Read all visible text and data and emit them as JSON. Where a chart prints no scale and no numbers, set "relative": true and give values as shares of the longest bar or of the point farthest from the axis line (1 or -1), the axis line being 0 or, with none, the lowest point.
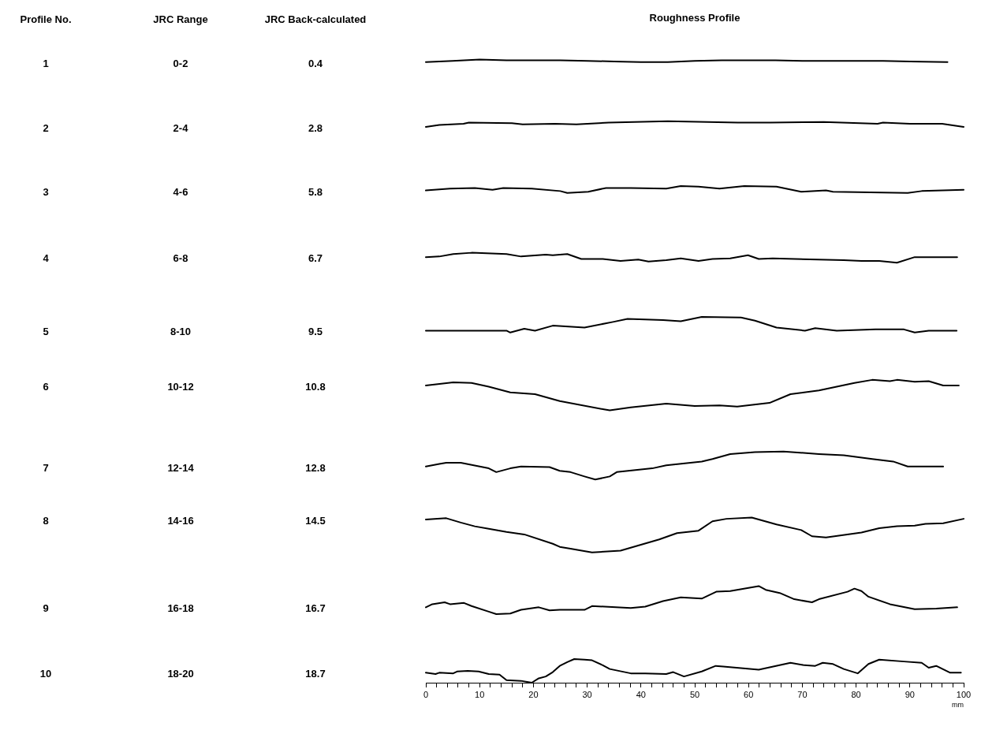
{
  "chart_data": [
    {
      "type": "other",
      "categories": [
        "Profile No.",
        "JRC Range",
        "JRC Back-calculated"
      ],
      "annotations": [
        "1",
        "0-2",
        "0.4",
        "2",
        "2-4",
        "2.8",
        "3",
        "4-6",
        "5.8",
        "4",
        "6-8",
        "6.7",
        "5",
        "8-10",
        "9.5",
        "6",
        "10-12",
        "10.8",
        "7",
        "12-14",
        "12.8",
        "8",
        "14-16",
        "14.5",
        "9",
        "16-18",
        "16.7",
        "10",
        "18-20",
        "18.7"
      ]
    },
    {
      "type": "line",
      "title": "Roughness Profile",
      "xlabel": "mm",
      "relative": true,
      "tick_labels": "x",
      "grid": false,
      "legend": false,
      "marker": "none",
      "line_style": "solid",
      "xlim": [
        0,
        100
      ],
      "xticks": [
        0,
        {
          "value": 2,
          "label": null
        },
        {
          "value": 4,
          "label": null
        },
        {
          "value": 6,
          "label": null
        },
        {
          "value": 8,
          "label": null
        },
        10,
        {
          "value": 12,
          "label": null
        },
        {
          "value": 14,
          "label": null
        },
        {
          "value": 16,
          "label": null
        },
        {
          "value": 18,
          "label": null
        },
        20,
        {
          "value": 22,
          "label": null
        },
        {
          "value": 24,
          "label": null
        },
        {
          "value": 26,
          "label": null
        },
        {
          "value": 28,
          "label": null
        },
        30,
        {
          "value": 32,
          "label": null
        },
        {
          "value": 34,
          "label": null
        },
        {
          "value": 36,
          "label": null
        },
        {
          "value": 38,
          "label": null
        },
        40,
        {
          "value": 42,
          "label": null
        },
        {
          "value": 44,
          "label": null
        },
        {
          "value": 46,
          "label": null
        },
        {
          "value": 48,
          "label": null
        },
        50,
        {
          "value": 52,
          "label": null
        },
        {
          "value": 54,
          "label": null
        },
        {
          "value": 56,
          "label": null
        },
        {
          "value": 58,
          "label": null
        },
        60,
        {
          "value": 62,
          "label": null
        },
        {
          "value": 64,
          "label": null
        },
        {
          "value": 66,
          "label": null
        },
        {
          "value": 68,
          "label": null
        },
        70,
        {
          "value": 72,
          "label": null
        },
        {
          "value": 74,
          "label": null
        },
        {
          "value": 76,
          "label": null
        },
        {
          "value": 78,
          "label": null
        },
        80,
        {
          "value": 82,
          "label": null
        },
        {
          "value": 84,
          "label": null
        },
        {
          "value": 86,
          "label": null
        },
        {
          "value": 88,
          "label": null
        },
        90,
        {
          "value": 92,
          "label": null
        },
        {
          "value": 94,
          "label": null
        },
        {
          "value": 96,
          "label": null
        },
        {
          "value": 98,
          "label": null
        },
        100
      ],
      "series": [
        {
          "color": "#000000",
          "x": [
            0,
            5,
            10,
            15,
            20,
            25,
            30,
            35,
            40,
            45,
            50,
            55,
            60,
            65,
            70,
            75,
            80,
            85,
            90,
            97
          ],
          "values": [
            0.996,
            0.998,
            1,
            0.999,
            0.999,
            0.999,
            0.998,
            0.997,
            0.996,
            0.996,
            0.998,
            0.999,
            0.999,
            0.999,
            0.998,
            0.998,
            0.998,
            0.998,
            0.997,
            0.996
          ]
        },
        {
          "color": "#000000",
          "x": [
            0,
            2.5,
            7,
            8,
            16,
            18,
            24,
            28,
            34,
            45,
            58,
            64,
            74,
            84,
            85,
            90,
            96,
            100
          ],
          "values": [
            0.892,
            0.895,
            0.897,
            0.899,
            0.898,
            0.896,
            0.897,
            0.896,
            0.899,
            0.901,
            0.899,
            0.899,
            0.9,
            0.897,
            0.899,
            0.897,
            0.897,
            0.892
          ]
        },
        {
          "color": "#000000",
          "x": [
            0,
            4.5,
            9.1,
            12.4,
            14.4,
            19.7,
            25,
            26.3,
            30.2,
            33.5,
            38.1,
            44.7,
            47.4,
            50.7,
            54.6,
            59.2,
            65.2,
            69.8,
            74.4,
            75.7,
            89.6,
            92.2,
            100
          ],
          "values": [
            0.79,
            0.793,
            0.794,
            0.791,
            0.794,
            0.793,
            0.789,
            0.786,
            0.788,
            0.794,
            0.794,
            0.793,
            0.797,
            0.796,
            0.793,
            0.797,
            0.796,
            0.788,
            0.79,
            0.788,
            0.786,
            0.789,
            0.791
          ]
        },
        {
          "color": "#000000",
          "x": [
            0,
            2.5,
            5.1,
            8.5,
            15,
            17.7,
            22.3,
            23.6,
            26.3,
            28.9,
            32.9,
            36.2,
            39.5,
            41.4,
            44.7,
            47.4,
            50.7,
            53.3,
            56.6,
            59.9,
            61.9,
            64.5,
            77.7,
            81,
            84.3,
            87.6,
            90.9,
            98.8
          ],
          "values": [
            0.683,
            0.684,
            0.688,
            0.69,
            0.688,
            0.684,
            0.687,
            0.686,
            0.688,
            0.68,
            0.68,
            0.677,
            0.679,
            0.676,
            0.678,
            0.681,
            0.677,
            0.68,
            0.681,
            0.686,
            0.68,
            0.681,
            0.678,
            0.677,
            0.677,
            0.674,
            0.683,
            0.683
          ]
        },
        {
          "color": "#000000",
          "x": [
            0,
            5.1,
            15,
            15.7,
            18.3,
            20.3,
            23.6,
            29.5,
            34.8,
            37.5,
            44.1,
            47.4,
            51.3,
            58.6,
            61.2,
            65.2,
            70.5,
            72.4,
            76.4,
            83.6,
            88.9,
            90.9,
            93.5,
            98.7
          ],
          "values": [
            0.565,
            0.565,
            0.565,
            0.562,
            0.568,
            0.565,
            0.573,
            0.57,
            0.579,
            0.584,
            0.582,
            0.58,
            0.587,
            0.586,
            0.581,
            0.57,
            0.565,
            0.569,
            0.565,
            0.567,
            0.567,
            0.562,
            0.565,
            0.565
          ]
        },
        {
          "color": "#000000",
          "x": [
            0,
            5.1,
            8.5,
            11.7,
            15.7,
            20.3,
            24.9,
            32.9,
            34.2,
            38.1,
            44.7,
            50,
            54.6,
            57.9,
            63.9,
            67.8,
            73.1,
            79.7,
            83,
            86.3,
            87.6,
            90.9,
            93.5,
            96.2,
            99.1
          ],
          "values": [
            0.477,
            0.482,
            0.481,
            0.475,
            0.466,
            0.463,
            0.452,
            0.439,
            0.437,
            0.442,
            0.448,
            0.444,
            0.445,
            0.443,
            0.449,
            0.463,
            0.469,
            0.481,
            0.486,
            0.484,
            0.486,
            0.483,
            0.484,
            0.477,
            0.477
          ]
        },
        {
          "color": "#000000",
          "x": [
            0,
            2.5,
            3.8,
            6.5,
            11.7,
            13.1,
            15.7,
            17.7,
            23,
            24.9,
            26.9,
            29.5,
            31.5,
            34.2,
            35.5,
            42.1,
            44.7,
            51.3,
            53.3,
            56.6,
            61.2,
            66.5,
            73.1,
            77.7,
            83,
            86.9,
            89.6,
            96.2
          ],
          "values": [
            0.347,
            0.351,
            0.353,
            0.353,
            0.344,
            0.338,
            0.344,
            0.347,
            0.346,
            0.34,
            0.338,
            0.331,
            0.326,
            0.331,
            0.338,
            0.344,
            0.349,
            0.355,
            0.359,
            0.367,
            0.37,
            0.371,
            0.367,
            0.365,
            0.359,
            0.355,
            0.347,
            0.347
          ]
        },
        {
          "color": "#000000",
          "x": [
            0,
            3.8,
            6.5,
            9.1,
            11.7,
            15,
            18.3,
            23.6,
            24.9,
            26.9,
            30.9,
            36.2,
            43.4,
            46.7,
            50.7,
            53.3,
            55.9,
            60.6,
            65.2,
            69.8,
            71.8,
            74.4,
            81,
            84.3,
            87.6,
            90.9,
            92.9,
            96.2,
            100
          ],
          "values": [
            0.262,
            0.264,
            0.257,
            0.251,
            0.247,
            0.242,
            0.238,
            0.223,
            0.218,
            0.215,
            0.209,
            0.212,
            0.23,
            0.24,
            0.244,
            0.259,
            0.263,
            0.265,
            0.254,
            0.245,
            0.235,
            0.233,
            0.241,
            0.248,
            0.251,
            0.252,
            0.255,
            0.256,
            0.263
          ]
        },
        {
          "color": "#000000",
          "x": [
            0,
            1.2,
            3.5,
            4.5,
            7.1,
            8.5,
            11.7,
            13.1,
            15.7,
            17.7,
            21,
            23,
            24.9,
            29.5,
            30.9,
            38.1,
            40.8,
            44.1,
            47.4,
            51.3,
            54,
            56.6,
            61.9,
            63.2,
            65.8,
            68.5,
            71.8,
            73.1,
            78.4,
            79.7,
            81,
            82.3,
            86.3,
            90.9,
            94.9,
            98.8
          ],
          "values": [
            0.121,
            0.126,
            0.129,
            0.126,
            0.128,
            0.123,
            0.114,
            0.11,
            0.111,
            0.117,
            0.121,
            0.116,
            0.117,
            0.117,
            0.123,
            0.12,
            0.122,
            0.131,
            0.137,
            0.135,
            0.146,
            0.147,
            0.155,
            0.149,
            0.144,
            0.134,
            0.129,
            0.134,
            0.146,
            0.151,
            0.147,
            0.138,
            0.126,
            0.118,
            0.119,
            0.121
          ]
        },
        {
          "color": "#000000",
          "x": [
            0,
            1.8,
            2.5,
            5.1,
            5.8,
            7.8,
            9.8,
            11.7,
            13.7,
            15,
            17.7,
            19.7,
            21,
            22.3,
            23.6,
            24.9,
            26.3,
            27.6,
            29.5,
            30.9,
            32.9,
            34.2,
            38.1,
            40.8,
            44.7,
            46,
            48,
            51.3,
            53.9,
            55.3,
            61.9,
            67.8,
            70.4,
            72.4,
            73.8,
            75.7,
            77.7,
            80.3,
            82.3,
            84.3,
            88.9,
            92.2,
            93.5,
            94.9,
            97.5,
            99.5
          ],
          "values": [
            0.016,
            0.014,
            0.016,
            0.015,
            0.018,
            0.019,
            0.018,
            0.014,
            0.013,
            0.004,
            0.003,
            0,
            0.007,
            0.01,
            0.017,
            0.027,
            0.033,
            0.038,
            0.037,
            0.036,
            0.028,
            0.022,
            0.015,
            0.015,
            0.014,
            0.017,
            0.01,
            0.018,
            0.027,
            0.026,
            0.021,
            0.032,
            0.028,
            0.027,
            0.032,
            0.03,
            0.022,
            0.015,
            0.03,
            0.037,
            0.034,
            0.032,
            0.024,
            0.027,
            0.016,
            0.016
          ]
        }
      ]
    }
  ]
}
